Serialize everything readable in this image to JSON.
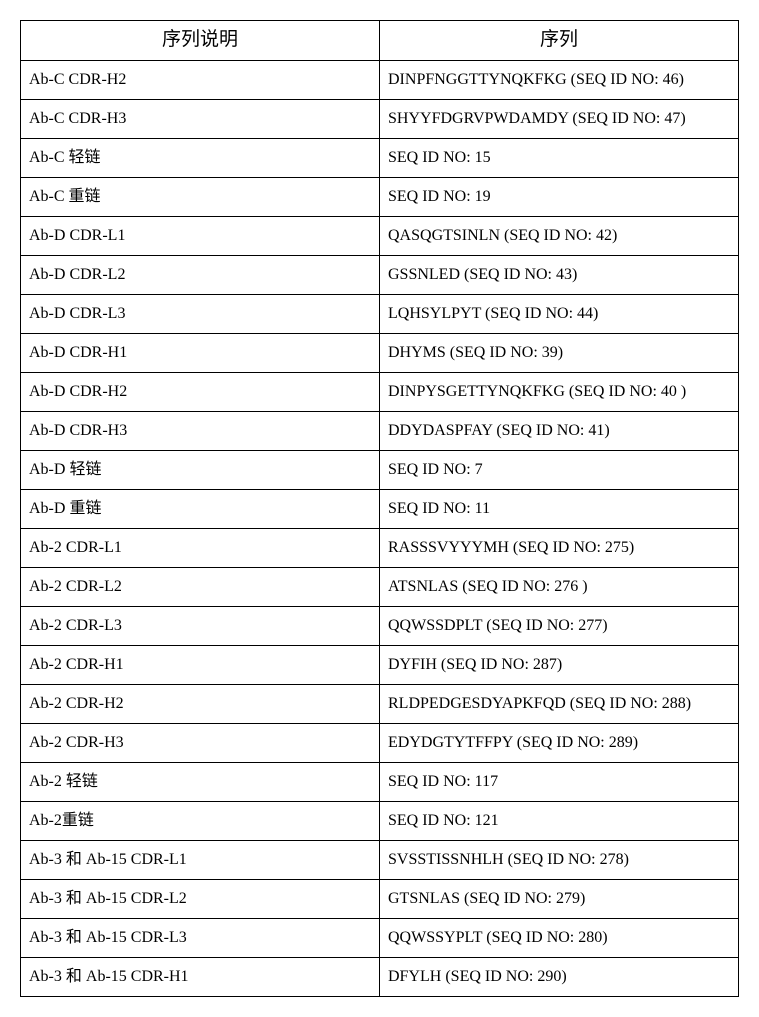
{
  "table": {
    "columns": [
      "序列说明",
      "序列"
    ],
    "column_widths": [
      "50%",
      "50%"
    ],
    "rows": [
      [
        "Ab-C CDR-H2",
        "DINPFNGGTTYNQKFKG (SEQ ID NO: 46)"
      ],
      [
        "Ab-C CDR-H3",
        "SHYYFDGRVPWDAMDY (SEQ ID NO: 47)"
      ],
      [
        "Ab-C 轻链",
        "SEQ ID NO: 15"
      ],
      [
        "Ab-C 重链",
        "SEQ ID NO: 19"
      ],
      [
        "Ab-D CDR-L1",
        "QASQGTSINLN (SEQ ID NO: 42)"
      ],
      [
        "Ab-D CDR-L2",
        "GSSNLED (SEQ ID NO: 43)"
      ],
      [
        "Ab-D CDR-L3",
        "LQHSYLPYT (SEQ ID NO: 44)"
      ],
      [
        "Ab-D CDR-H1",
        "DHYMS (SEQ ID NO: 39)"
      ],
      [
        "Ab-D CDR-H2",
        "DINPYSGETTYNQKFKG  (SEQ ID NO: 40 )"
      ],
      [
        "Ab-D CDR-H3",
        "DDYDASPFAY (SEQ ID NO: 41)"
      ],
      [
        "Ab-D 轻链",
        "SEQ ID NO: 7"
      ],
      [
        "Ab-D 重链",
        "SEQ ID NO: 11"
      ],
      [
        "Ab-2 CDR-L1",
        "RASSSVYYYMH (SEQ ID NO: 275)"
      ],
      [
        "Ab-2 CDR-L2",
        "ATSNLAS (SEQ ID NO: 276 )"
      ],
      [
        "Ab-2 CDR-L3",
        "QQWSSDPLT (SEQ ID NO: 277)"
      ],
      [
        "Ab-2 CDR-H1",
        "DYFIH (SEQ ID NO: 287)"
      ],
      [
        "Ab-2 CDR-H2",
        "RLDPEDGESDYAPKFQD (SEQ ID NO: 288)"
      ],
      [
        "Ab-2 CDR-H3",
        "EDYDGTYTFFPY (SEQ ID NO: 289)"
      ],
      [
        "Ab-2 轻链",
        "SEQ ID NO: 117"
      ],
      [
        "Ab-2重链",
        "SEQ ID NO: 121"
      ],
      [
        "Ab-3 和  Ab-15 CDR-L1",
        "SVSSTISSNHLH (SEQ ID NO: 278)"
      ],
      [
        "Ab-3 和  Ab-15 CDR-L2",
        "GTSNLAS (SEQ ID NO: 279)"
      ],
      [
        "Ab-3 和  Ab-15 CDR-L3",
        "QQWSSYPLT (SEQ ID NO: 280)"
      ],
      [
        "Ab-3 和  Ab-15 CDR-H1",
        "DFYLH (SEQ ID NO: 290)"
      ]
    ],
    "header_fontsize": 19,
    "cell_fontsize": 16,
    "border_color": "#000000",
    "border_width": 1.5,
    "background_color": "#ffffff",
    "text_color": "#000000"
  }
}
